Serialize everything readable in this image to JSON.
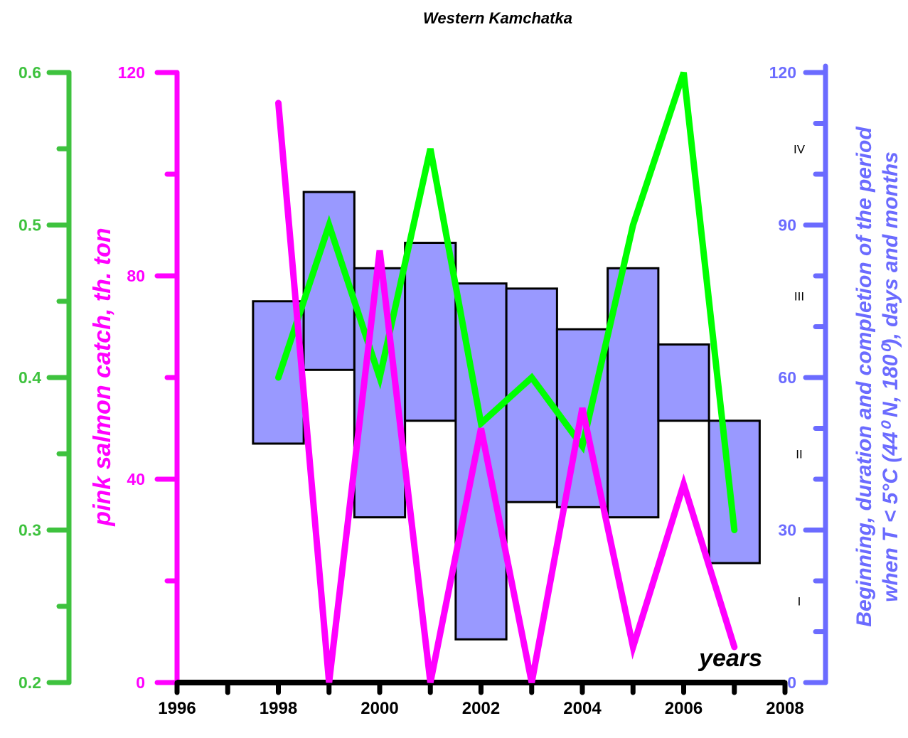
{
  "chart_data": {
    "type": "bar+line",
    "title": "Western Kamchatka",
    "xlabel": "years",
    "x_ticks": [
      "1996",
      "1998",
      "2000",
      "2002",
      "2004",
      "2006",
      "2008"
    ],
    "xlim": [
      1996,
      2008
    ],
    "axes": {
      "green": {
        "ylim": [
          0.2,
          0.6
        ],
        "ticks": [
          "0.2",
          "0.3",
          "0.4",
          "0.5",
          "0.6"
        ],
        "color": "#3ec23e"
      },
      "magenta": {
        "ylim": [
          0,
          120
        ],
        "ticks": [
          "0",
          "40",
          "80",
          "120"
        ],
        "color": "#ff00ff",
        "label": "pink salmon catch, th. ton"
      },
      "blue": {
        "ylim": [
          0,
          120
        ],
        "ticks": [
          "0",
          "30",
          "60",
          "90",
          "120"
        ],
        "color": "#6b6bff",
        "label_line1": "Beginning, duration and completion of the period",
        "label_line2": "when T < 5°C (44⁰ N, 180⁰), days and months"
      }
    },
    "season_labels": [
      {
        "text": "IV",
        "value": 105
      },
      {
        "text": "III",
        "value": 76
      },
      {
        "text": "II",
        "value": 45
      },
      {
        "text": "I",
        "value": 16
      }
    ],
    "series": [
      {
        "kind": "bar",
        "axis": "blue",
        "fill": "#9999ff",
        "bars": [
          {
            "year": 1998,
            "low": 47,
            "high": 75
          },
          {
            "year": 1999,
            "low": 61.5,
            "high": 96.5
          },
          {
            "year": 2000,
            "low": 32.5,
            "high": 81.5
          },
          {
            "year": 2001,
            "low": 51.5,
            "high": 86.5
          },
          {
            "year": 2002,
            "low": 8.5,
            "high": 78.5
          },
          {
            "year": 2003,
            "low": 35.5,
            "high": 77.5
          },
          {
            "year": 2004,
            "low": 34.5,
            "high": 69.5
          },
          {
            "year": 2005,
            "low": 32.5,
            "high": 81.5
          },
          {
            "year": 2006,
            "low": 51.5,
            "high": 66.5
          },
          {
            "year": 2007,
            "low": 23.5,
            "high": 51.5
          }
        ]
      },
      {
        "kind": "line",
        "axis": "green",
        "color": "#00ff00",
        "x": [
          1998,
          1999,
          2000,
          2001,
          2002,
          2003,
          2004,
          2005,
          2006,
          2007
        ],
        "values": [
          0.4,
          0.5,
          0.4,
          0.55,
          0.37,
          0.4,
          0.355,
          0.5,
          0.6,
          0.3
        ]
      },
      {
        "kind": "line",
        "axis": "magenta",
        "color": "#ff00ff",
        "x": [
          1998,
          1999,
          2000,
          2001,
          2002,
          2003,
          2004,
          2005,
          2006,
          2007
        ],
        "values": [
          114,
          0,
          85,
          0,
          50,
          0,
          54,
          7,
          39,
          7
        ]
      }
    ]
  }
}
